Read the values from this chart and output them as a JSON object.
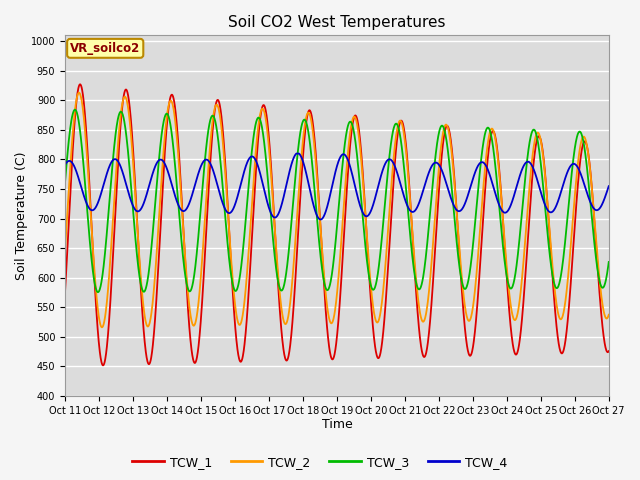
{
  "title": "Soil CO2 West Temperatures",
  "xlabel": "Time",
  "ylabel": "Soil Temperature (C)",
  "ylim": [
    400,
    1010
  ],
  "xlim": [
    0,
    16
  ],
  "annotation_text": "VR_soilco2",
  "plot_bg": "#dcdcdc",
  "fig_bg": "#f5f5f5",
  "grid_color": "#ffffff",
  "colors": {
    "TCW_1": "#dd0000",
    "TCW_2": "#ff9900",
    "TCW_3": "#00bb00",
    "TCW_4": "#0000cc"
  },
  "lw": 1.3,
  "yticks": [
    400,
    450,
    500,
    550,
    600,
    650,
    700,
    750,
    800,
    850,
    900,
    950,
    1000
  ],
  "xtick_labels": [
    "Oct 11",
    "Oct 12",
    "Oct 13",
    "Oct 14",
    "Oct 15",
    "Oct 16",
    "Oct 17",
    "Oct 18",
    "Oct 19",
    "Oct 20",
    "Oct 21",
    "Oct 22",
    "Oct 23",
    "Oct 24",
    "Oct 25",
    "Oct 26",
    "Oct 27"
  ],
  "tick_fontsize": 7,
  "label_fontsize": 9,
  "title_fontsize": 11
}
